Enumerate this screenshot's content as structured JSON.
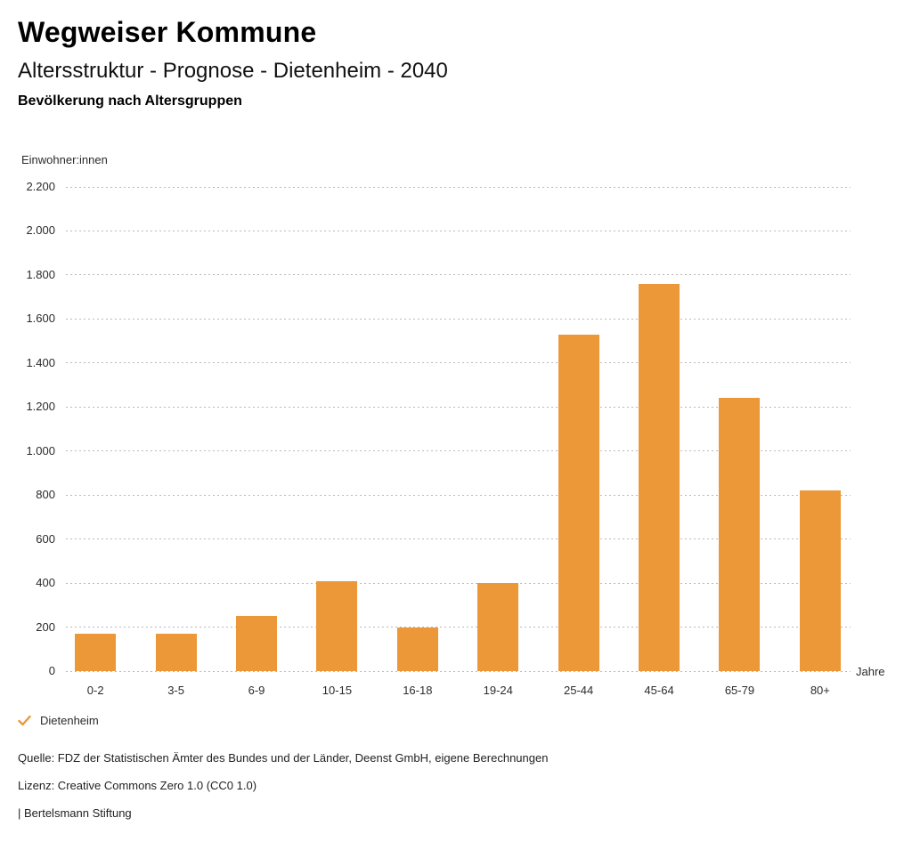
{
  "header": {
    "title": "Wegweiser Kommune",
    "subtitle": "Altersstruktur - Prognose - Dietenheim - 2040",
    "chart_heading": "Bevölkerung nach Altersgruppen"
  },
  "chart_data": {
    "type": "bar",
    "title": "Bevölkerung nach Altersgruppen",
    "unit_label": "Einwohner:innen",
    "xlabel": "Jahre",
    "ylabel": "Einwohner:innen",
    "categories": [
      "0-2",
      "3-5",
      "6-9",
      "10-15",
      "16-18",
      "19-24",
      "25-44",
      "45-64",
      "65-79",
      "80+"
    ],
    "series": [
      {
        "name": "Dietenheim",
        "values": [
          170,
          170,
          250,
          410,
          200,
          400,
          1530,
          1760,
          1240,
          820
        ]
      }
    ],
    "ylim": [
      0,
      2200
    ],
    "ytick_step": 200,
    "ytick_labels": [
      "0",
      "200",
      "400",
      "600",
      "800",
      "1.000",
      "1.200",
      "1.400",
      "1.600",
      "1.800",
      "2.000",
      "2.200"
    ],
    "grid": "horizontal dashed",
    "legend_position": "bottom-left",
    "bar_color": "#EC9838"
  },
  "legend": {
    "label": "Dietenheim"
  },
  "footer": {
    "source": "Quelle: FDZ der Statistischen Ämter des Bundes und der Länder, Deenst GmbH, eigene Berechnungen",
    "license": "Lizenz: Creative Commons Zero 1.0 (CC0 1.0)",
    "attribution": "| Bertelsmann Stiftung"
  },
  "colors": {
    "accent": "#EC9838",
    "grid": "#B9B9B9",
    "text": "#1A1A1A"
  }
}
